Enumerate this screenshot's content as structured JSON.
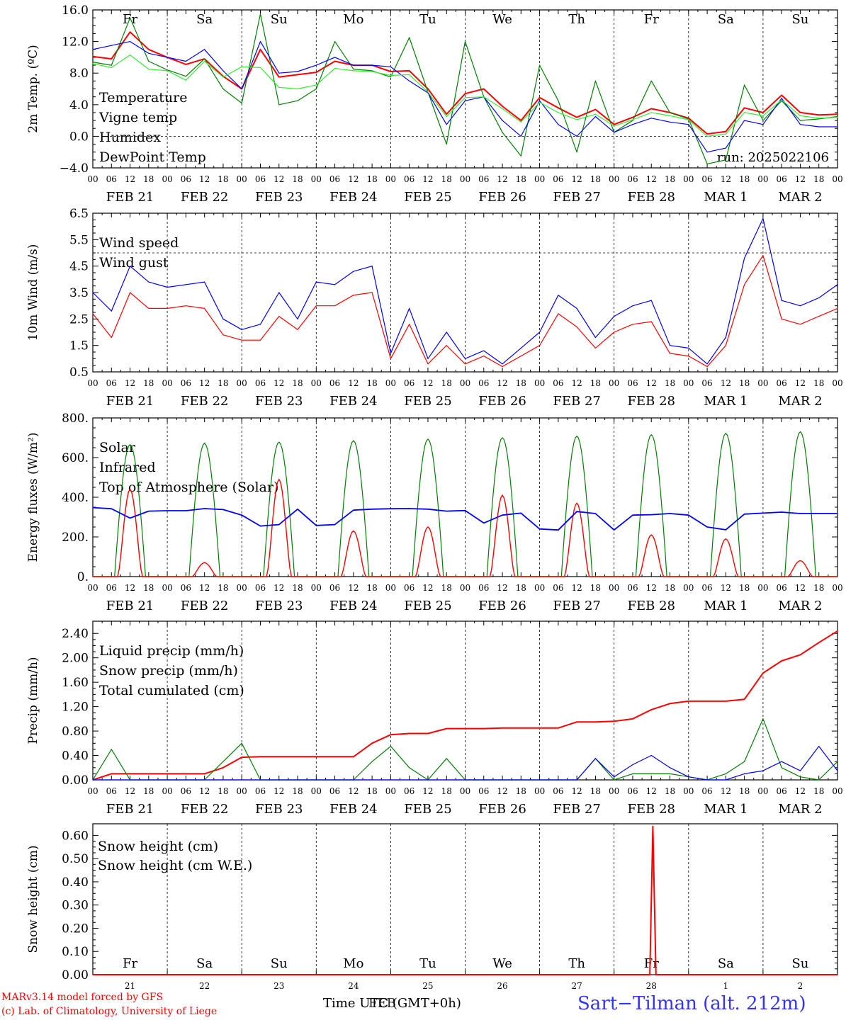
{
  "chart_data": [
    {
      "type": "line",
      "ylabel": "2m Temp. (ºC)",
      "ylim": [
        -4.0,
        16.0
      ],
      "yticks": [
        "16.0",
        "12.0",
        "8.0",
        "4.0",
        "0.0",
        "−4.0"
      ],
      "hlines": [
        0.0
      ],
      "legend": [
        {
          "label": "Temperature",
          "color": "#ff0000"
        },
        {
          "label": "Vigne temp",
          "color": "#008000"
        },
        {
          "label": "Humidex",
          "color": "#0000ff"
        },
        {
          "label": "DewPoint Temp",
          "color": "#33ee33"
        }
      ],
      "annotation": "run: 2025022106",
      "x_hours": [
        0,
        6,
        12,
        18,
        24,
        30,
        36,
        42,
        48,
        54,
        60,
        66,
        72,
        78,
        84,
        90,
        96,
        102,
        108,
        114,
        120,
        126,
        132,
        138,
        144,
        150,
        156,
        162,
        168,
        174,
        180,
        186,
        192,
        198,
        204,
        210,
        216,
        222,
        228,
        234,
        240
      ],
      "series": [
        {
          "name": "Temperature",
          "color": "#ff0000",
          "values": [
            10.1,
            9.8,
            13.2,
            11.0,
            10.0,
            9.1,
            9.8,
            7.6,
            6.0,
            11.0,
            7.5,
            7.8,
            8.1,
            9.5,
            9.0,
            9.0,
            8.2,
            8.3,
            6.0,
            2.8,
            5.4,
            6.0,
            3.8,
            2.0,
            4.9,
            3.6,
            2.4,
            3.4,
            1.5,
            2.4,
            3.5,
            3.0,
            2.3,
            0.3,
            0.6,
            3.6,
            3.0,
            5.2,
            3.0,
            2.7,
            2.8
          ]
        },
        {
          "name": "Vigne temp",
          "color": "#008000",
          "values": [
            9.4,
            9.0,
            15.0,
            9.5,
            8.4,
            7.6,
            9.8,
            6.0,
            4.2,
            15.5,
            4.0,
            4.5,
            6.0,
            12.0,
            8.5,
            8.3,
            7.5,
            12.5,
            5.6,
            -1.0,
            12.0,
            5.0,
            0.5,
            -2.5,
            9.0,
            4.5,
            -2.0,
            7.0,
            0.5,
            2.0,
            7.0,
            3.0,
            2.2,
            -3.5,
            -3.0,
            6.5,
            2.0,
            4.5,
            2.0,
            2.2,
            2.5
          ]
        },
        {
          "name": "Humidex",
          "color": "#0000ff",
          "values": [
            11.0,
            11.5,
            12.0,
            10.5,
            10.0,
            9.5,
            11.0,
            8.3,
            6.0,
            12.0,
            8.0,
            8.2,
            9.0,
            10.0,
            9.0,
            9.0,
            8.8,
            7.0,
            5.5,
            1.5,
            4.5,
            5.0,
            2.0,
            0.0,
            4.5,
            1.5,
            0.0,
            2.5,
            0.5,
            1.5,
            2.3,
            1.8,
            1.5,
            -2.0,
            -1.5,
            2.0,
            1.5,
            4.8,
            1.5,
            1.2,
            1.2
          ]
        },
        {
          "name": "DewPoint Temp",
          "color": "#33ee33",
          "values": [
            9.2,
            8.7,
            10.3,
            8.5,
            8.3,
            7.1,
            9.5,
            7.5,
            8.8,
            8.7,
            6.2,
            6.0,
            6.5,
            8.6,
            8.3,
            8.2,
            7.7,
            7.8,
            5.6,
            2.5,
            4.9,
            5.0,
            3.5,
            1.8,
            4.3,
            3.0,
            2.1,
            2.8,
            1.3,
            2.1,
            3.0,
            2.6,
            2.1,
            0.0,
            0.3,
            3.0,
            2.6,
            4.6,
            2.6,
            2.3,
            2.4
          ]
        }
      ]
    },
    {
      "type": "line",
      "ylabel": "10m Wind (m/s)",
      "ylim": [
        0.5,
        6.5
      ],
      "yticks": [
        "6.5",
        "5.5",
        "4.5",
        "3.5",
        "2.5",
        "1.5",
        "0.5"
      ],
      "hlines": [
        5.0
      ],
      "legend": [
        {
          "label": "Wind speed",
          "color": "#ff0000"
        },
        {
          "label": "Wind gust",
          "color": "#0000ff"
        }
      ],
      "x_hours": [
        0,
        6,
        12,
        18,
        24,
        30,
        36,
        42,
        48,
        54,
        60,
        66,
        72,
        78,
        84,
        90,
        96,
        102,
        108,
        114,
        120,
        126,
        132,
        138,
        144,
        150,
        156,
        162,
        168,
        174,
        180,
        186,
        192,
        198,
        204,
        210,
        216,
        222,
        228,
        234,
        240
      ],
      "series": [
        {
          "name": "Wind speed",
          "color": "#ff0000",
          "values": [
            2.7,
            1.8,
            3.5,
            2.9,
            2.9,
            3.0,
            2.9,
            1.9,
            1.7,
            1.7,
            2.6,
            2.1,
            3.0,
            3.0,
            3.4,
            3.5,
            1.0,
            2.3,
            0.8,
            1.5,
            0.8,
            1.1,
            0.7,
            1.1,
            1.5,
            2.7,
            2.2,
            1.4,
            2.0,
            2.3,
            2.4,
            1.2,
            1.1,
            0.7,
            1.5,
            3.8,
            4.9,
            2.5,
            2.3,
            2.6,
            2.9
          ]
        },
        {
          "name": "Wind gust",
          "color": "#0000ff",
          "values": [
            3.5,
            2.8,
            4.5,
            3.9,
            3.7,
            3.8,
            3.9,
            2.5,
            2.1,
            2.3,
            3.5,
            2.5,
            3.9,
            3.8,
            4.3,
            4.5,
            1.2,
            2.9,
            1.0,
            2.0,
            1.0,
            1.3,
            0.8,
            1.4,
            2.0,
            3.4,
            2.9,
            1.8,
            2.6,
            3.0,
            3.2,
            1.5,
            1.4,
            0.8,
            1.8,
            4.8,
            6.3,
            3.2,
            3.0,
            3.3,
            3.8
          ]
        }
      ]
    },
    {
      "type": "line",
      "ylabel": "Energy fluxes (W/m²)",
      "ylim": [
        0,
        800
      ],
      "yticks": [
        "800.",
        "600.",
        "400.",
        "200.",
        "0."
      ],
      "legend": [
        {
          "label": "Solar",
          "color": "#ff0000"
        },
        {
          "label": "Infrared",
          "color": "#0000ff"
        },
        {
          "label": "Top of Atmosphere (Solar)",
          "color": "#008000"
        }
      ],
      "solar_peaks": [
        440,
        70,
        490,
        230,
        250,
        410,
        370,
        210,
        190,
        80
      ],
      "toa_peaks": [
        665,
        672,
        678,
        685,
        693,
        700,
        708,
        715,
        722,
        730
      ],
      "infrared": {
        "x_hours": [
          0,
          6,
          12,
          18,
          24,
          30,
          36,
          42,
          48,
          54,
          60,
          66,
          72,
          78,
          84,
          90,
          96,
          102,
          108,
          114,
          120,
          126,
          132,
          138,
          144,
          150,
          156,
          162,
          168,
          174,
          180,
          186,
          192,
          198,
          204,
          210,
          216,
          222,
          228,
          234,
          240
        ],
        "values": [
          348,
          342,
          295,
          330,
          332,
          332,
          343,
          338,
          310,
          255,
          262,
          340,
          258,
          262,
          335,
          340,
          342,
          343,
          340,
          330,
          333,
          270,
          310,
          320,
          240,
          235,
          328,
          318,
          235,
          310,
          312,
          318,
          310,
          250,
          236,
          315,
          320,
          325,
          318,
          318,
          318
        ]
      },
      "series": []
    },
    {
      "type": "line",
      "ylabel": "Precip (mm/h)",
      "ylim": [
        0,
        2.6
      ],
      "yticks": [
        "2.40",
        "2.00",
        "1.60",
        "1.20",
        "0.80",
        "0.40",
        "0.00"
      ],
      "legend": [
        {
          "label": "Liquid precip (mm/h)",
          "color": "#008000"
        },
        {
          "label": "Snow precip (mm/h)",
          "color": "#0000ff"
        },
        {
          "label": "Total cumulated (cm)",
          "color": "#ff0000"
        }
      ],
      "x_hours": [
        0,
        6,
        12,
        18,
        24,
        30,
        36,
        42,
        48,
        54,
        60,
        66,
        72,
        78,
        84,
        90,
        96,
        102,
        108,
        114,
        120,
        126,
        132,
        138,
        144,
        150,
        156,
        162,
        168,
        174,
        180,
        186,
        192,
        198,
        204,
        210,
        216,
        222,
        228,
        234,
        240
      ],
      "series": [
        {
          "name": "Total cumulated (cm)",
          "color": "#ff0000",
          "values": [
            0.0,
            0.1,
            0.1,
            0.1,
            0.1,
            0.1,
            0.1,
            0.2,
            0.37,
            0.38,
            0.38,
            0.38,
            0.38,
            0.38,
            0.38,
            0.6,
            0.74,
            0.76,
            0.76,
            0.84,
            0.84,
            0.84,
            0.85,
            0.85,
            0.85,
            0.85,
            0.95,
            0.95,
            0.96,
            1.0,
            1.15,
            1.25,
            1.29,
            1.29,
            1.29,
            1.32,
            1.75,
            1.95,
            2.05,
            2.25,
            2.44
          ]
        },
        {
          "name": "Liquid precip (mm/h)",
          "color": "#008000",
          "values": [
            0.0,
            0.5,
            0.0,
            0.0,
            0.0,
            0.0,
            0.0,
            0.3,
            0.6,
            0.0,
            0.0,
            0.0,
            0.0,
            0.0,
            0.0,
            0.3,
            0.55,
            0.2,
            0.0,
            0.35,
            0.0,
            0.0,
            0.0,
            0.0,
            0.0,
            0.0,
            0.0,
            0.35,
            0.0,
            0.1,
            0.1,
            0.1,
            0.05,
            0.0,
            0.1,
            0.3,
            1.0,
            0.2,
            0.05,
            0.0,
            0.3
          ]
        },
        {
          "name": "Snow precip (mm/h)",
          "color": "#0000ff",
          "values": [
            0,
            0,
            0,
            0,
            0,
            0,
            0,
            0,
            0,
            0,
            0,
            0,
            0,
            0,
            0,
            0,
            0,
            0,
            0,
            0,
            0,
            0,
            0,
            0,
            0,
            0,
            0,
            0.35,
            0.05,
            0.25,
            0.4,
            0.2,
            0.05,
            0,
            0,
            0.1,
            0.15,
            0.3,
            0.15,
            0.55,
            0.15
          ]
        }
      ]
    },
    {
      "type": "line",
      "ylabel": "Snow height (cm)",
      "ylim": [
        0,
        0.65
      ],
      "yticks": [
        "0.60",
        "0.50",
        "0.40",
        "0.30",
        "0.20",
        "0.10",
        "0.00"
      ],
      "legend": [
        {
          "label": "Snow height (cm)",
          "color": "#ff0000"
        },
        {
          "label": "Snow height (cm W.E.)",
          "color": "#0000ff"
        }
      ],
      "spike": {
        "hour": 180.5,
        "value": 0.64
      },
      "series": []
    }
  ],
  "x_axis": {
    "hour_ticks": [
      "00",
      "06",
      "12",
      "18"
    ],
    "dates": [
      "FEB 21",
      "FEB 22",
      "FEB 23",
      "FEB 24",
      "FEB 25",
      "FEB 26",
      "FEB 27",
      "FEB 28",
      "MAR  1",
      "MAR  2"
    ],
    "days": [
      {
        "label": "Fr",
        "weekend": false
      },
      {
        "label": "Sa",
        "weekend": true
      },
      {
        "label": "Su",
        "weekend": true
      },
      {
        "label": "Mo",
        "weekend": false
      },
      {
        "label": "Tu",
        "weekend": false
      },
      {
        "label": "We",
        "weekend": false
      },
      {
        "label": "Th",
        "weekend": false
      },
      {
        "label": "Fr",
        "weekend": false
      },
      {
        "label": "Sa",
        "weekend": true
      },
      {
        "label": "Su",
        "weekend": true
      }
    ],
    "day_numbers": [
      "21",
      "22",
      "23",
      "24",
      "25",
      "26",
      "27",
      "28",
      "1",
      "2"
    ]
  },
  "footer": {
    "model": "MARv3.14 model forced by GFS",
    "copyright": "(c) Lab. of Climatology, University of Liege",
    "time_label": "Time UTC (GMT+0h)",
    "time_label_overlay": "FEB",
    "station": "Sart−Tilman (alt. 212m)"
  },
  "colors": {
    "weekend": "#ff0000",
    "weekday": "#000000",
    "station": "#3333ff",
    "footer": "#ff0000"
  }
}
